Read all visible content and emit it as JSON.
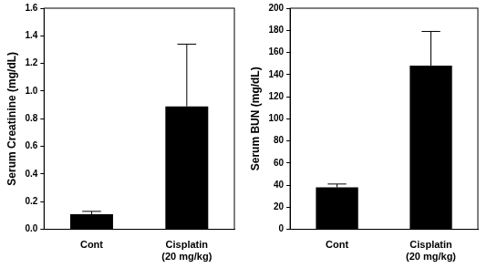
{
  "chart_data": [
    {
      "type": "bar",
      "y_label": "Serum Creatinine (mg/dL)",
      "categories": [
        "Cont",
        "Cisplatin\n(20 mg/kg)"
      ],
      "values": [
        0.11,
        0.89
      ],
      "errors": [
        0.02,
        0.45
      ],
      "color": "#000000",
      "ylim": [
        0,
        1.6
      ],
      "yticks": [
        {
          "value": 0,
          "label": "0.0"
        },
        0.2,
        0.4,
        0.6,
        0.8,
        {
          "value": 1,
          "label": "1.0"
        },
        1.2,
        1.4,
        1.6
      ],
      "grid": false
    },
    {
      "type": "bar",
      "y_label": "Serum BUN (mg/dL)",
      "categories": [
        "Cont",
        "Cisplatin\n(20 mg/kg)"
      ],
      "values": [
        38,
        148
      ],
      "errors": [
        3,
        31
      ],
      "color": "#000000",
      "ylim": [
        0,
        200
      ],
      "yticks": [
        0,
        20,
        40,
        60,
        80,
        100,
        120,
        140,
        160,
        180,
        200
      ],
      "grid": false
    }
  ]
}
